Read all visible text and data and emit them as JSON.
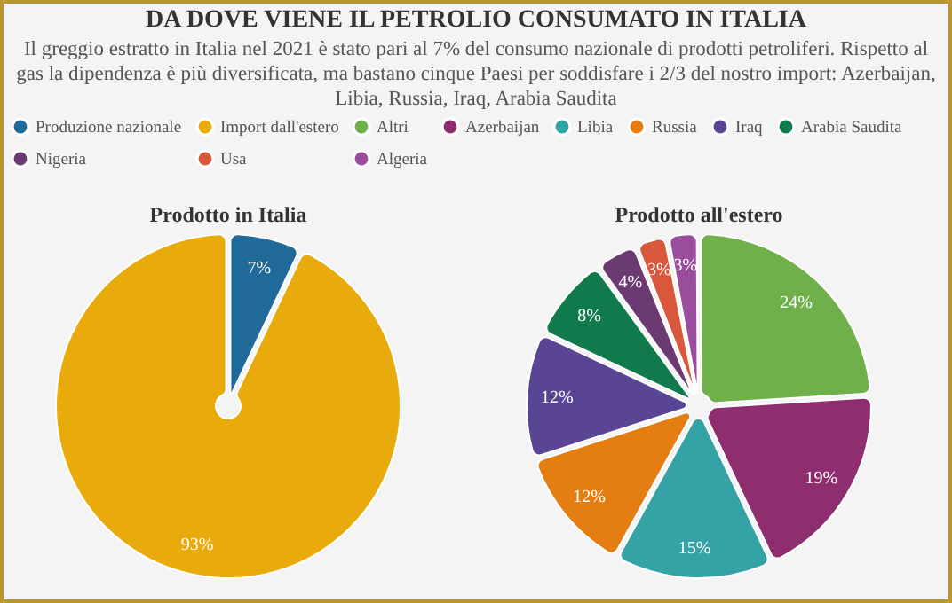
{
  "chart_data": [
    {
      "type": "pie",
      "title": "Prodotto in Italia",
      "annotations": [
        "DA DOVE VIENE IL PETROLIO CONSUMATO IN ITALIA",
        "Il greggio estratto in Italia nel 2021 è stato pari al 7% del consumo nazionale di prodotti petroliferi. Rispetto al gas la dipendenza è più diversificata, ma bastano cinque Paesi per soddisfare i 2/3 del nostro import: Azerbaijan, Libia, Russia, Iraq, Arabia Saudita"
      ],
      "categories": [
        "Produzione nazionale",
        "Import dall'estero"
      ],
      "values": [
        7,
        93
      ],
      "colors": [
        "#1f6a98",
        "#e9ab0b"
      ],
      "value_labels": [
        "7%",
        "93%"
      ],
      "legend": "top"
    },
    {
      "type": "pie",
      "title": "Prodotto all'estero",
      "categories": [
        "Altri",
        "Azerbaijan",
        "Libia",
        "Russia",
        "Iraq",
        "Arabia Saudita",
        "Nigeria",
        "Usa",
        "Algeria"
      ],
      "values": [
        24,
        19,
        15,
        12,
        12,
        8,
        4,
        3,
        3
      ],
      "colors": [
        "#6fb04a",
        "#8f2e6e",
        "#35a3a6",
        "#e47e12",
        "#5a4595",
        "#117a4d",
        "#6c3a72",
        "#d9573a",
        "#9a4d9d"
      ],
      "value_labels": [
        "24%",
        "19%",
        "15%",
        "12%",
        "12%",
        "8%",
        "4%",
        "3%",
        "3%"
      ],
      "legend": "top"
    }
  ]
}
